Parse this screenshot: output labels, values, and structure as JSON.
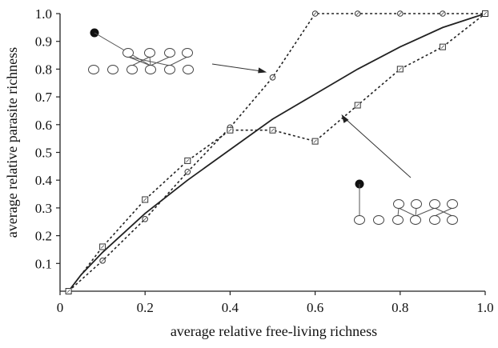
{
  "chart_data": {
    "type": "line",
    "xlabel": "average relative free-living richness",
    "ylabel": "average relative parasite richness",
    "xlim": [
      0,
      1.0
    ],
    "ylim": [
      0,
      1.0
    ],
    "x_ticks": [
      "0",
      "0.2",
      "0.4",
      "0.6",
      "0.8",
      "1.0"
    ],
    "y_ticks": [
      "0.1",
      "0.2",
      "0.3",
      "0.4",
      "0.5",
      "0.6",
      "0.7",
      "0.8",
      "0.9",
      "1.0"
    ],
    "grid": false,
    "series": [
      {
        "style": "solid",
        "marker": "none",
        "points": [
          [
            0.02,
            0.0
          ],
          [
            0.05,
            0.06
          ],
          [
            0.1,
            0.14
          ],
          [
            0.2,
            0.28
          ],
          [
            0.3,
            0.4
          ],
          [
            0.4,
            0.51
          ],
          [
            0.5,
            0.62
          ],
          [
            0.6,
            0.71
          ],
          [
            0.7,
            0.8
          ],
          [
            0.8,
            0.88
          ],
          [
            0.9,
            0.95
          ],
          [
            1.0,
            1.0
          ]
        ]
      },
      {
        "style": "dotted",
        "marker": "circle",
        "points": [
          [
            0.02,
            0.0
          ],
          [
            0.1,
            0.11
          ],
          [
            0.2,
            0.26
          ],
          [
            0.3,
            0.43
          ],
          [
            0.4,
            0.59
          ],
          [
            0.5,
            0.77
          ],
          [
            0.6,
            1.0
          ],
          [
            0.7,
            1.0
          ],
          [
            0.8,
            1.0
          ],
          [
            0.9,
            1.0
          ],
          [
            1.0,
            1.0
          ]
        ]
      },
      {
        "style": "dotted",
        "marker": "square",
        "points": [
          [
            0.02,
            0.0
          ],
          [
            0.1,
            0.16
          ],
          [
            0.2,
            0.33
          ],
          [
            0.3,
            0.47
          ],
          [
            0.4,
            0.58
          ],
          [
            0.5,
            0.58
          ],
          [
            0.6,
            0.54
          ],
          [
            0.7,
            0.67
          ],
          [
            0.8,
            0.8
          ],
          [
            0.9,
            0.88
          ],
          [
            1.0,
            1.0
          ]
        ]
      }
    ],
    "annotations": [
      {
        "type": "network-diagram",
        "position": "top-left",
        "arrow_to": [
          0.49,
          0.8
        ]
      },
      {
        "type": "network-diagram",
        "position": "bottom-right",
        "arrow_to": [
          0.66,
          0.64
        ]
      }
    ]
  }
}
